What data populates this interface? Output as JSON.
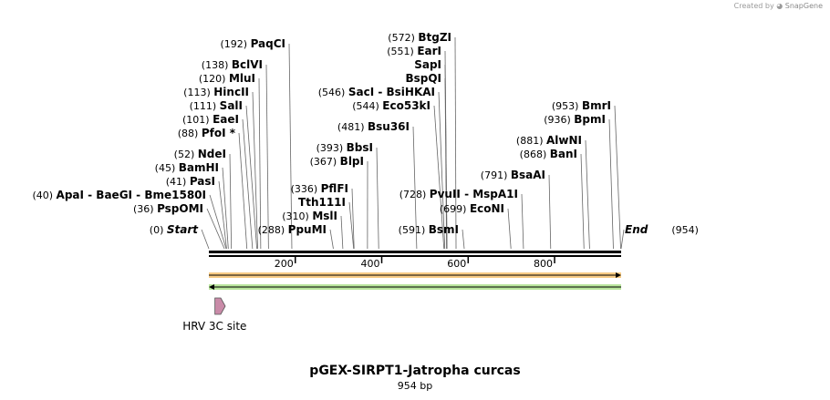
{
  "credit": {
    "prefix": "Created by",
    "brand": "SnapGene"
  },
  "map": {
    "title": "pGEX-SIRPT1-Jatropha curcas",
    "size_label": "954 bp",
    "length": 954,
    "ruler_ticks": [
      200,
      400,
      600,
      800
    ],
    "start_label": "Start",
    "start_pos": "(0)",
    "end_label": "End",
    "end_pos": "(954)",
    "features": [
      {
        "name": "HRV 3C site",
        "start": 14,
        "end": 38,
        "direction": "forward",
        "color": "#c98ba8"
      }
    ],
    "orfs": [
      {
        "direction": "forward",
        "start": 0,
        "end": 954,
        "color": "#f0a020"
      },
      {
        "direction": "reverse",
        "start": 0,
        "end": 954,
        "color": "#7fd04a"
      }
    ]
  },
  "sites": [
    {
      "pos": "(0)",
      "names": "Start",
      "cut": 0
    },
    {
      "pos": "(36)",
      "names": "PspOMI",
      "cut": 36
    },
    {
      "pos": "(40)",
      "names": "ApaI  -  BaeGI  -  Bme1580I",
      "cut": 40
    },
    {
      "pos": "(41)",
      "names": "PasI",
      "cut": 41
    },
    {
      "pos": "(45)",
      "names": "BamHI",
      "cut": 45
    },
    {
      "pos": "(52)",
      "names": "NdeI",
      "cut": 52
    },
    {
      "pos": "(88)",
      "names": "PfoI *",
      "cut": 88
    },
    {
      "pos": "(101)",
      "names": "EaeI",
      "cut": 101
    },
    {
      "pos": "(111)",
      "names": "SalI",
      "cut": 111
    },
    {
      "pos": "(113)",
      "names": "HincII",
      "cut": 113
    },
    {
      "pos": "(120)",
      "names": "MluI",
      "cut": 120
    },
    {
      "pos": "(138)",
      "names": "BclVI",
      "cut": 138
    },
    {
      "pos": "(192)",
      "names": "PaqCI",
      "cut": 192
    },
    {
      "pos": "(288)",
      "names": "PpuMI",
      "cut": 288
    },
    {
      "pos": "(310)",
      "names": "MslI",
      "cut": 310
    },
    {
      "pos": "",
      "names": "Tth111I",
      "cut": 335
    },
    {
      "pos": "(336)",
      "names": "PflFI",
      "cut": 336
    },
    {
      "pos": "(367)",
      "names": "BlpI",
      "cut": 367
    },
    {
      "pos": "(393)",
      "names": "BbsI",
      "cut": 393
    },
    {
      "pos": "(481)",
      "names": "Bsu36I",
      "cut": 481
    },
    {
      "pos": "(546)",
      "names": "SacI  -  BsiHKAI",
      "cut": 546
    },
    {
      "pos": "(544)",
      "names": "Eco53kI",
      "cut": 544
    },
    {
      "pos": "",
      "names": "BspQI",
      "cut": 550
    },
    {
      "pos": "",
      "names": "SapI",
      "cut": 551
    },
    {
      "pos": "(551)",
      "names": "EarI",
      "cut": 551
    },
    {
      "pos": "(572)",
      "names": "BtgZI",
      "cut": 572
    },
    {
      "pos": "(591)",
      "names": "BsmI",
      "cut": 591
    },
    {
      "pos": "(699)",
      "names": "EcoNI",
      "cut": 699
    },
    {
      "pos": "(728)",
      "names": "PvuII  -  MspA1I",
      "cut": 728
    },
    {
      "pos": "(791)",
      "names": "BsaAI",
      "cut": 791
    },
    {
      "pos": "(868)",
      "names": "BanI",
      "cut": 868
    },
    {
      "pos": "(881)",
      "names": "AlwNI",
      "cut": 881
    },
    {
      "pos": "(936)",
      "names": "BpmI",
      "cut": 936
    },
    {
      "pos": "(953)",
      "names": "BmrI",
      "cut": 953
    },
    {
      "pos": "(954)",
      "names": "End",
      "cut": 954
    }
  ]
}
